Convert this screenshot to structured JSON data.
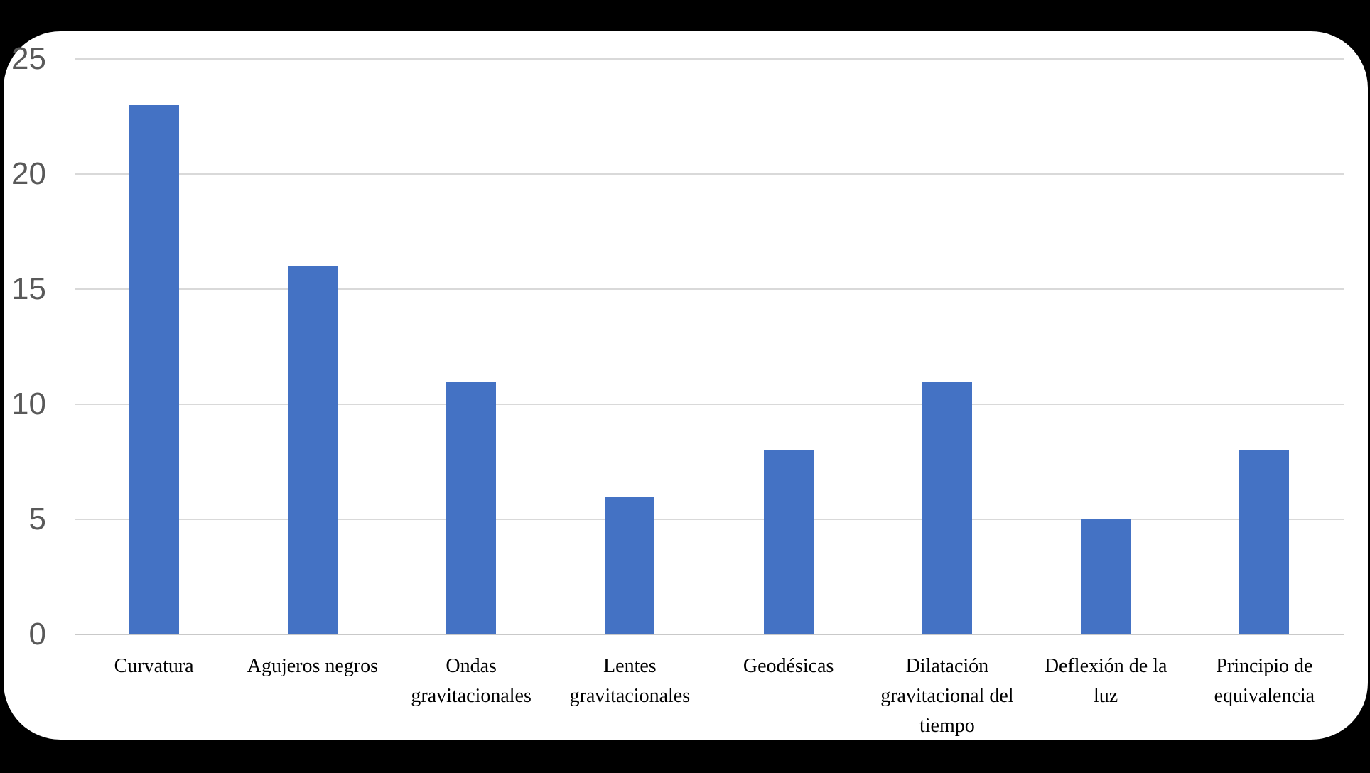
{
  "chart_data": {
    "type": "bar",
    "categories": [
      "Curvatura",
      "Agujeros negros",
      "Ondas gravitacionales",
      "Lentes gravitacionales",
      "Geodésicas",
      "Dilatación gravitacional del tiempo",
      "Deflexión de la luz",
      "Principio de equivalencia"
    ],
    "values": [
      23,
      16,
      11,
      6,
      8,
      11,
      5,
      8
    ],
    "title": "",
    "xlabel": "",
    "ylabel": "",
    "ylim": [
      0,
      25
    ],
    "yticks": [
      0,
      5,
      10,
      15,
      20,
      25
    ],
    "grid": true,
    "legend": false,
    "colors": {
      "bar": "#4472C4",
      "gridline": "#D9D9D9",
      "axis_line": "#C9C9C9",
      "ytick_label": "#595959",
      "category_label": "#000000",
      "plot_background": "#FFFFFF",
      "page_background": "#000000"
    }
  }
}
